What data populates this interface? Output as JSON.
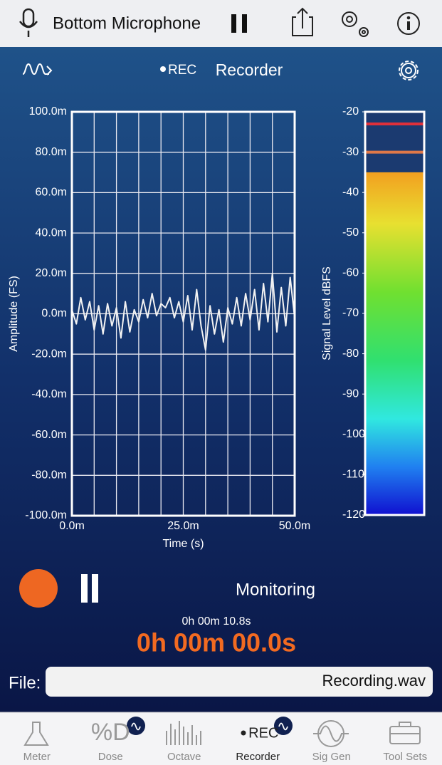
{
  "header": {
    "title": "Bottom Microphone"
  },
  "toolbar": {
    "rec_label": "REC",
    "title": "Recorder"
  },
  "chart_data": [
    {
      "type": "line",
      "xlabel": "Time (s)",
      "ylabel": "Amplitude (FS)",
      "x": [
        0,
        1,
        2,
        3,
        4,
        5,
        6,
        7,
        8,
        9,
        10,
        11,
        12,
        13,
        14,
        15,
        16,
        17,
        18,
        19,
        20,
        21,
        22,
        23,
        24,
        25,
        26,
        27,
        28,
        29,
        30,
        31,
        32,
        33,
        34,
        35,
        36,
        37,
        38,
        39,
        40,
        41,
        42,
        43,
        44,
        45,
        46,
        47,
        48,
        49,
        50
      ],
      "values": [
        2,
        -5,
        8,
        -3,
        6,
        -8,
        4,
        -10,
        5,
        -6,
        3,
        -12,
        6,
        -9,
        2,
        -4,
        7,
        -2,
        10,
        -1,
        5,
        3,
        8,
        -2,
        6,
        -4,
        9,
        -8,
        12,
        -6,
        -18,
        4,
        -10,
        2,
        -14,
        3,
        -5,
        8,
        -6,
        10,
        -3,
        12,
        -8,
        15,
        -4,
        20,
        -9,
        13,
        -6,
        18,
        -2
      ],
      "color": "#f2f2f2",
      "xlim": [
        0,
        50
      ],
      "xticks": [
        {
          "value": 0,
          "label": "0.0m"
        },
        {
          "value": 25,
          "label": "25.0m"
        },
        {
          "value": 50,
          "label": "50.0m"
        }
      ],
      "xgrid": [
        5,
        10,
        15,
        20,
        30,
        35,
        40,
        45
      ],
      "ylim": [
        -100,
        100
      ],
      "yticks": [
        {
          "value": 100,
          "label": "100.0m"
        },
        {
          "value": 80,
          "label": "80.0m"
        },
        {
          "value": 60,
          "label": "60.0m"
        },
        {
          "value": 40,
          "label": "40.0m"
        },
        {
          "value": 20,
          "label": "20.0m"
        },
        {
          "value": 0,
          "label": "0.0m"
        },
        {
          "value": -20,
          "label": "-20.0m"
        },
        {
          "value": -40,
          "label": "-40.0m"
        },
        {
          "value": -60,
          "label": "-60.0m"
        },
        {
          "value": -80,
          "label": "-80.0m"
        },
        {
          "value": -100,
          "label": "-100.0m"
        }
      ],
      "grid": true
    },
    {
      "type": "meter",
      "ylabel": "Signal Level dBFS",
      "values": [
        -35
      ],
      "peaks": [
        {
          "value": -23,
          "color": "#e0303a"
        },
        {
          "value": -30,
          "color": "#e07848"
        }
      ],
      "ylim": [
        -120,
        -20
      ],
      "yticks": [
        -20,
        -30,
        -40,
        -50,
        -60,
        -70,
        -80,
        -90,
        -100,
        -110,
        -120
      ]
    }
  ],
  "status": {
    "mode": "Monitoring",
    "elapsed": "0h 00m 10.8s",
    "recorded": "0h 00m 00.0s"
  },
  "file": {
    "label": "File:",
    "name": "Recording.wav"
  },
  "tabs": [
    {
      "label": "Meter"
    },
    {
      "icon_text": "%D",
      "label": "Dose"
    },
    {
      "label": "Octave"
    },
    {
      "icon_text": "REC",
      "label": "Recorder",
      "active": true
    },
    {
      "label": "Sig Gen"
    },
    {
      "label": "Tool Sets"
    }
  ]
}
